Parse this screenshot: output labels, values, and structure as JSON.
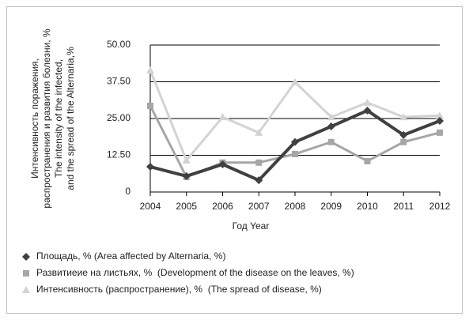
{
  "chart_data": {
    "type": "line",
    "ylabel": [
      "Интенсивность поражения,",
      "распространения и развития болезни, %",
      "The intensity of the infected,",
      "and the spread of the Alternaria,%"
    ],
    "xlabel": "Год Year",
    "categories": [
      "2004",
      "2005",
      "2006",
      "2007",
      "2008",
      "2009",
      "2010",
      "2011",
      "2012"
    ],
    "series": [
      {
        "name": "Площадь, % (Area affected by Alternaria, %)",
        "color": "#404040",
        "marker": "diamond",
        "values": [
          8.6,
          5.4,
          9.4,
          4.0,
          17.0,
          22.3,
          27.7,
          19.4,
          24.2
        ]
      },
      {
        "name": "Развитиеие на листьях, %  (Development of the disease on the leaves, %)",
        "color": "#a6a6a6",
        "marker": "square",
        "values": [
          29.3,
          5.1,
          10.0,
          10.0,
          12.9,
          17.0,
          10.5,
          17.0,
          20.2
        ]
      },
      {
        "name": "Интенсивность (распространение), %  (The spread of disease, %)",
        "color": "#d3d3d3",
        "marker": "triangle",
        "values": [
          41.4,
          10.8,
          25.5,
          20.2,
          37.4,
          25.5,
          30.4,
          25.5,
          26.0
        ]
      }
    ],
    "ylim": [
      0,
      50
    ],
    "yticks": [
      0,
      {
        "value": 12.5,
        "label": "12.50"
      },
      {
        "value": 25,
        "label": "25.00"
      },
      {
        "value": 37.5,
        "label": "37.50"
      },
      {
        "value": 50,
        "label": "50.00"
      }
    ],
    "grid": true,
    "legend": "bottom"
  }
}
